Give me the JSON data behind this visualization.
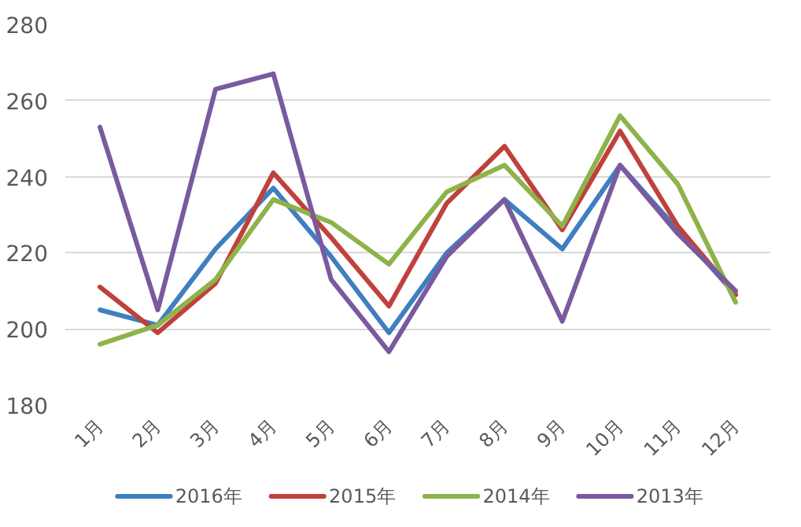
{
  "chart_data": {
    "type": "line",
    "categories": [
      "1月",
      "2月",
      "3月",
      "4月",
      "5月",
      "6月",
      "7月",
      "8月",
      "9月",
      "10月",
      "11月",
      "12月"
    ],
    "series": [
      {
        "name": "2016年",
        "color": "#3f7fc0",
        "values": [
          205,
          201,
          221,
          237,
          219,
          199,
          220,
          234,
          221,
          243,
          226,
          209
        ]
      },
      {
        "name": "2015年",
        "color": "#c0413c",
        "values": [
          211,
          199,
          212,
          241,
          224,
          206,
          233,
          248,
          226,
          252,
          227,
          209
        ]
      },
      {
        "name": "2014年",
        "color": "#8db34a",
        "values": [
          196,
          201,
          213,
          234,
          228,
          217,
          236,
          243,
          227,
          256,
          238,
          207
        ]
      },
      {
        "name": "2013年",
        "color": "#7a5a9e",
        "values": [
          253,
          205,
          263,
          267,
          213,
          194,
          219,
          234,
          202,
          243,
          225,
          210
        ]
      }
    ],
    "ylim": [
      180,
      280
    ],
    "yticks": [
      180,
      200,
      220,
      240,
      260,
      280
    ],
    "grid": "y",
    "legend": "bottom",
    "marker": "none",
    "line_style": "solid"
  }
}
